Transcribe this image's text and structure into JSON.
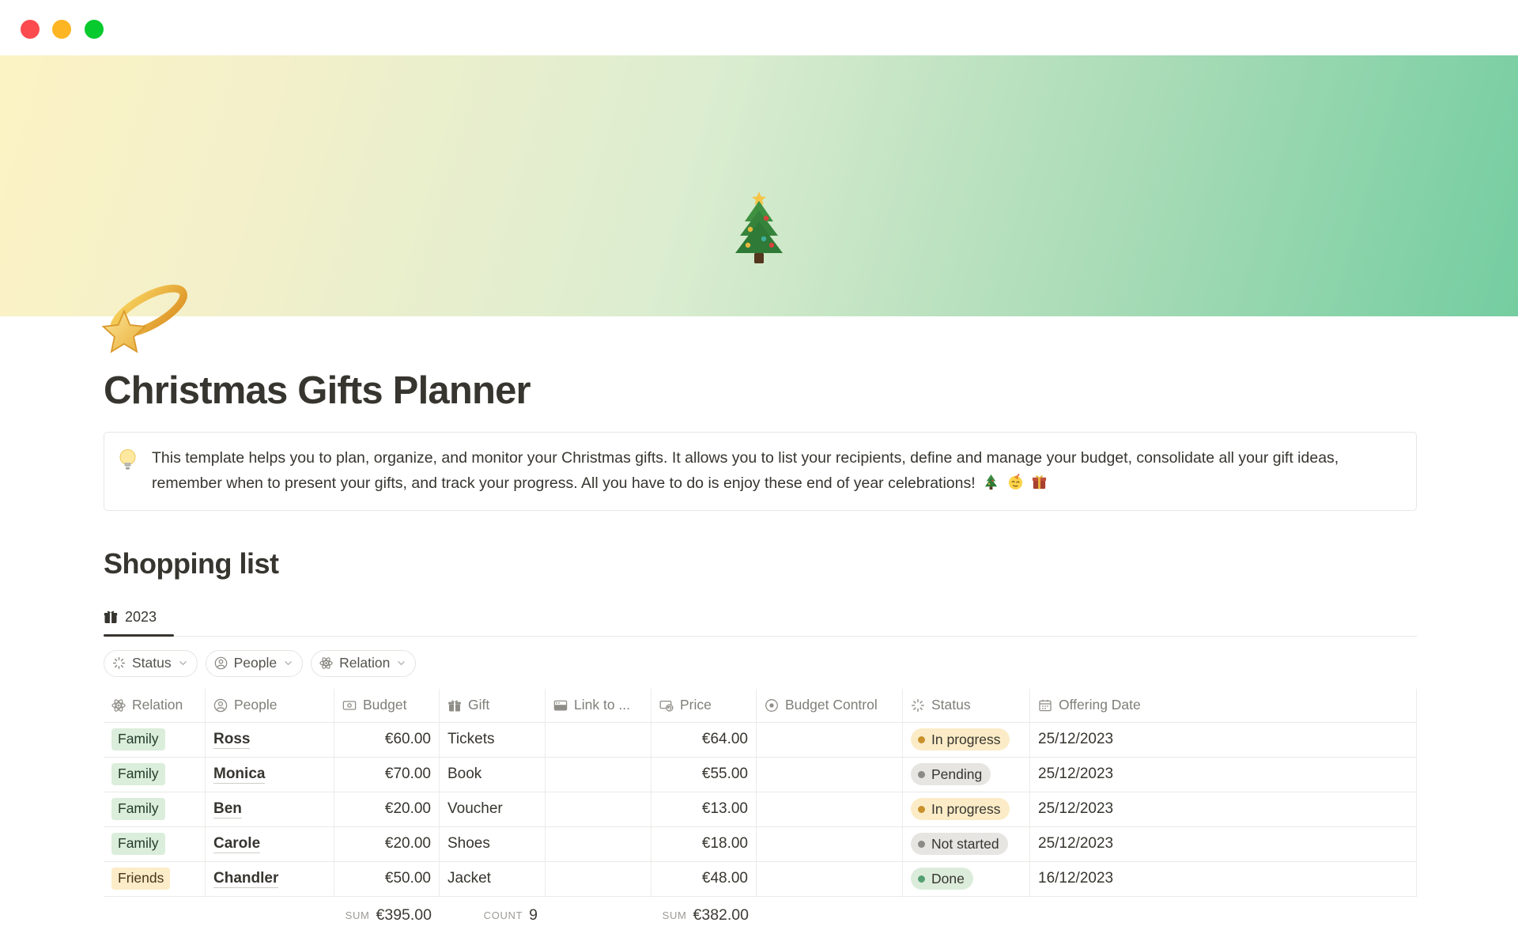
{
  "window": {
    "traffic_lights": [
      {
        "name": "close",
        "color": "#fb4b4e"
      },
      {
        "name": "minimize",
        "color": "#fdb524"
      },
      {
        "name": "zoom",
        "color": "#06ca2e"
      }
    ]
  },
  "cover": {
    "emoji": "christmas-tree"
  },
  "page": {
    "icon": "shooting-star",
    "title": "Christmas Gifts Planner",
    "callout": {
      "icon": "light-bulb",
      "text": "This template helps you to plan, organize, and monitor your Christmas gifts. It allows you to list your recipients, define and manage your budget, consolidate all your gift ideas, remember when to present your gifts, and track your progress. All you have to do is enjoy these end of year celebrations!",
      "trailing_emojis": [
        "christmas-tree",
        "partying-face",
        "wrapped-gift"
      ]
    }
  },
  "section": {
    "heading": "Shopping list"
  },
  "tabs": [
    {
      "label": "2023",
      "icon": "gift",
      "active": true
    }
  ],
  "filters": [
    {
      "label": "Status",
      "icon": "status-spinner"
    },
    {
      "label": "People",
      "icon": "person"
    },
    {
      "label": "Relation",
      "icon": "atom"
    }
  ],
  "table": {
    "columns": [
      {
        "label": "Relation",
        "icon": "atom"
      },
      {
        "label": "People",
        "icon": "person"
      },
      {
        "label": "Budget",
        "icon": "banknote"
      },
      {
        "label": "Gift",
        "icon": "gift"
      },
      {
        "label": "Link to ...",
        "icon": "browser"
      },
      {
        "label": "Price",
        "icon": "rollup"
      },
      {
        "label": "Budget Control",
        "icon": "eye-target"
      },
      {
        "label": "Status",
        "icon": "status-spinner"
      },
      {
        "label": "Offering Date",
        "icon": "calendar"
      }
    ],
    "rows": [
      {
        "relation": "Family",
        "relation_color": "green",
        "person": "Ross",
        "budget": "€60.00",
        "gift": "Tickets",
        "link": "",
        "price": "€64.00",
        "budget_control": "",
        "status": "In progress",
        "status_color": "yellow",
        "date": "25/12/2023"
      },
      {
        "relation": "Family",
        "relation_color": "green",
        "person": "Monica",
        "budget": "€70.00",
        "gift": "Book",
        "link": "",
        "price": "€55.00",
        "budget_control": "",
        "status": "Pending",
        "status_color": "gray",
        "date": "25/12/2023"
      },
      {
        "relation": "Family",
        "relation_color": "green",
        "person": "Ben",
        "budget": "€20.00",
        "gift": "Voucher",
        "link": "",
        "price": "€13.00",
        "budget_control": "",
        "status": "In progress",
        "status_color": "yellow",
        "date": "25/12/2023"
      },
      {
        "relation": "Family",
        "relation_color": "green",
        "person": "Carole",
        "budget": "€20.00",
        "gift": "Shoes",
        "link": "",
        "price": "€18.00",
        "budget_control": "",
        "status": "Not started",
        "status_color": "gray",
        "date": "25/12/2023"
      },
      {
        "relation": "Friends",
        "relation_color": "yellow",
        "person": "Chandler",
        "budget": "€50.00",
        "gift": "Jacket",
        "link": "",
        "price": "€48.00",
        "budget_control": "",
        "status": "Done",
        "status_color": "green",
        "date": "16/12/2023"
      }
    ],
    "footer": {
      "budget_label": "SUM",
      "budget_value": "€395.00",
      "gift_label": "COUNT",
      "gift_value": "9",
      "price_label": "SUM",
      "price_value": "€382.00"
    }
  },
  "colors": {
    "text": "#37352f",
    "muted_text": "#7f7e79",
    "table_border": "#e9e9e7",
    "tag_green_bg": "#dbeddb",
    "tag_yellow_bg": "#fdecc8",
    "pill_gray_bg": "#e6e5e2",
    "pill_green_bg": "#dcecdb",
    "dot_yellow": "#c9902b",
    "dot_gray": "#8c8a85",
    "dot_green": "#54a072",
    "cover_gradient_start": "#fcf3c4",
    "cover_gradient_end": "#74cda0"
  }
}
